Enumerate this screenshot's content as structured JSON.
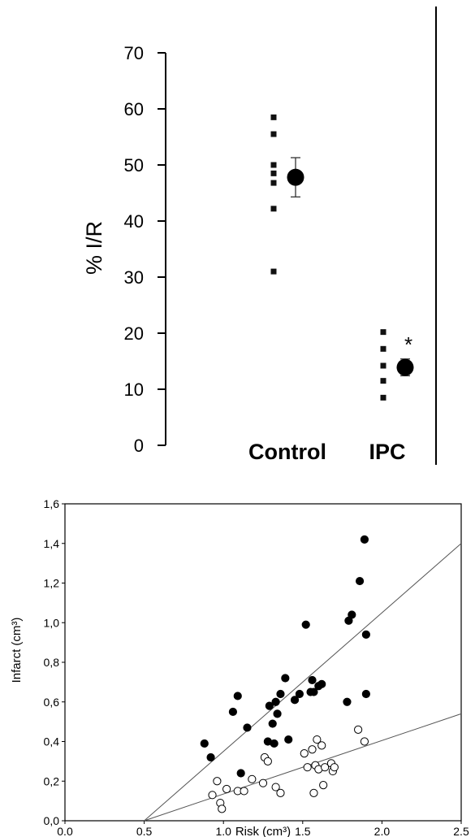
{
  "chart_data": [
    {
      "type": "scatter",
      "ylabel": "% I/R",
      "ylim": [
        0,
        70
      ],
      "yticks": [
        0,
        10,
        20,
        30,
        40,
        50,
        60,
        70
      ],
      "categories": [
        "Control",
        "IPC"
      ],
      "groups": [
        {
          "name": "Control",
          "points": [
            58.5,
            55.5,
            50,
            48.5,
            46.8,
            42.2,
            31
          ],
          "mean": 47.8,
          "error": 3.5
        },
        {
          "name": "IPC",
          "points": [
            20.2,
            17.2,
            14.2,
            11.5,
            8.5
          ],
          "mean": 13.9,
          "error": 1.5,
          "annotation": "*"
        }
      ]
    },
    {
      "type": "scatter",
      "xlabel": "Risk (cm³)",
      "ylabel": "Infarct (cm³)",
      "xlim": [
        0.0,
        2.5
      ],
      "ylim": [
        0.0,
        1.6
      ],
      "xticks": [
        "0.0",
        "0.5",
        "1.0",
        "1.5",
        "2.0",
        "2.5"
      ],
      "yticks": [
        "0,0",
        "0,2",
        "0,4",
        "0,6",
        "0,8",
        "1,0",
        "1,2",
        "1,4",
        "1,6"
      ],
      "series": [
        {
          "marker": "filled-circle",
          "points": [
            [
              0.88,
              0.39
            ],
            [
              0.92,
              0.32
            ],
            [
              1.06,
              0.55
            ],
            [
              1.09,
              0.63
            ],
            [
              1.11,
              0.24
            ],
            [
              1.15,
              0.47
            ],
            [
              1.28,
              0.4
            ],
            [
              1.29,
              0.58
            ],
            [
              1.31,
              0.49
            ],
            [
              1.32,
              0.39
            ],
            [
              1.33,
              0.6
            ],
            [
              1.34,
              0.54
            ],
            [
              1.36,
              0.64
            ],
            [
              1.39,
              0.72
            ],
            [
              1.41,
              0.41
            ],
            [
              1.45,
              0.61
            ],
            [
              1.48,
              0.64
            ],
            [
              1.52,
              0.99
            ],
            [
              1.55,
              0.65
            ],
            [
              1.56,
              0.71
            ],
            [
              1.57,
              0.65
            ],
            [
              1.6,
              0.68
            ],
            [
              1.62,
              0.69
            ],
            [
              1.78,
              0.6
            ],
            [
              1.79,
              1.01
            ],
            [
              1.81,
              1.04
            ],
            [
              1.86,
              1.21
            ],
            [
              1.89,
              1.42
            ],
            [
              1.9,
              0.94
            ],
            [
              1.9,
              0.64
            ]
          ],
          "trendline": [
            [
              0.5,
              0.0
            ],
            [
              2.5,
              1.4
            ]
          ]
        },
        {
          "marker": "open-circle",
          "points": [
            [
              0.93,
              0.13
            ],
            [
              0.96,
              0.2
            ],
            [
              0.98,
              0.09
            ],
            [
              0.99,
              0.06
            ],
            [
              1.02,
              0.16
            ],
            [
              1.09,
              0.15
            ],
            [
              1.13,
              0.15
            ],
            [
              1.18,
              0.21
            ],
            [
              1.25,
              0.19
            ],
            [
              1.26,
              0.32
            ],
            [
              1.28,
              0.3
            ],
            [
              1.33,
              0.17
            ],
            [
              1.36,
              0.14
            ],
            [
              1.51,
              0.34
            ],
            [
              1.53,
              0.27
            ],
            [
              1.56,
              0.36
            ],
            [
              1.57,
              0.14
            ],
            [
              1.58,
              0.28
            ],
            [
              1.59,
              0.41
            ],
            [
              1.6,
              0.26
            ],
            [
              1.62,
              0.38
            ],
            [
              1.63,
              0.18
            ],
            [
              1.64,
              0.27
            ],
            [
              1.68,
              0.29
            ],
            [
              1.69,
              0.25
            ],
            [
              1.7,
              0.27
            ],
            [
              1.85,
              0.46
            ],
            [
              1.89,
              0.4
            ]
          ],
          "trendline": [
            [
              0.5,
              0.0
            ],
            [
              2.5,
              0.54
            ]
          ]
        }
      ]
    }
  ]
}
